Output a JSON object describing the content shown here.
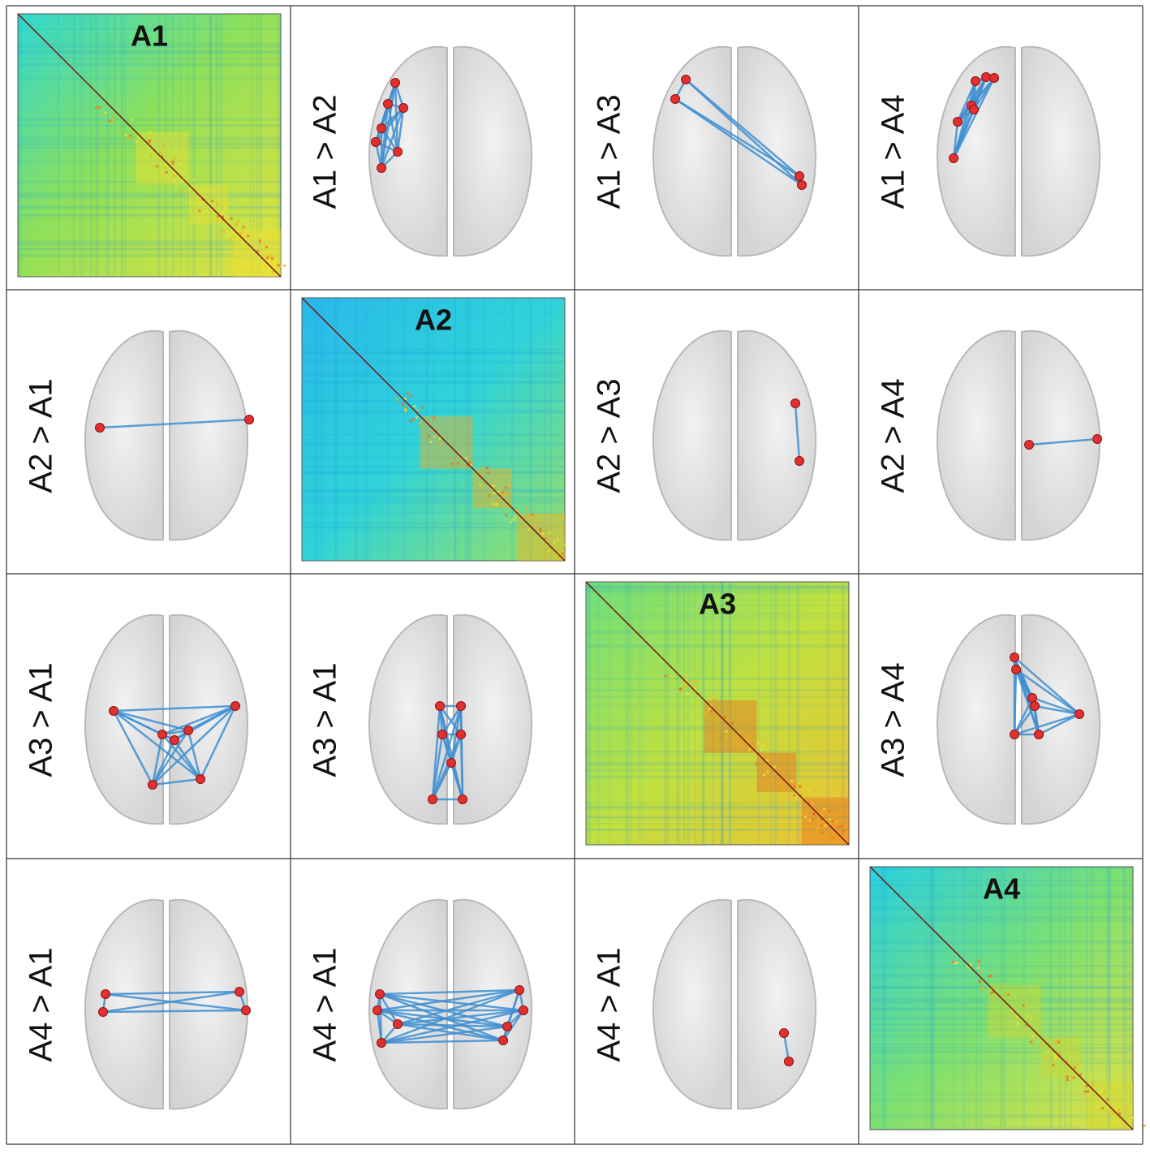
{
  "grid": {
    "rows": [
      [
        "A1",
        "A1 > A2",
        "A1 > A3",
        "A1 > A4"
      ],
      [
        "A2 > A1",
        "A2",
        "A2 > A3",
        "A2 > A4"
      ],
      [
        "A3 > A1",
        "A3 > A1",
        "A3",
        "A3 > A4"
      ],
      [
        "A4 > A1",
        "A4 > A1",
        "A4 > A1",
        "A4"
      ]
    ]
  }
}
